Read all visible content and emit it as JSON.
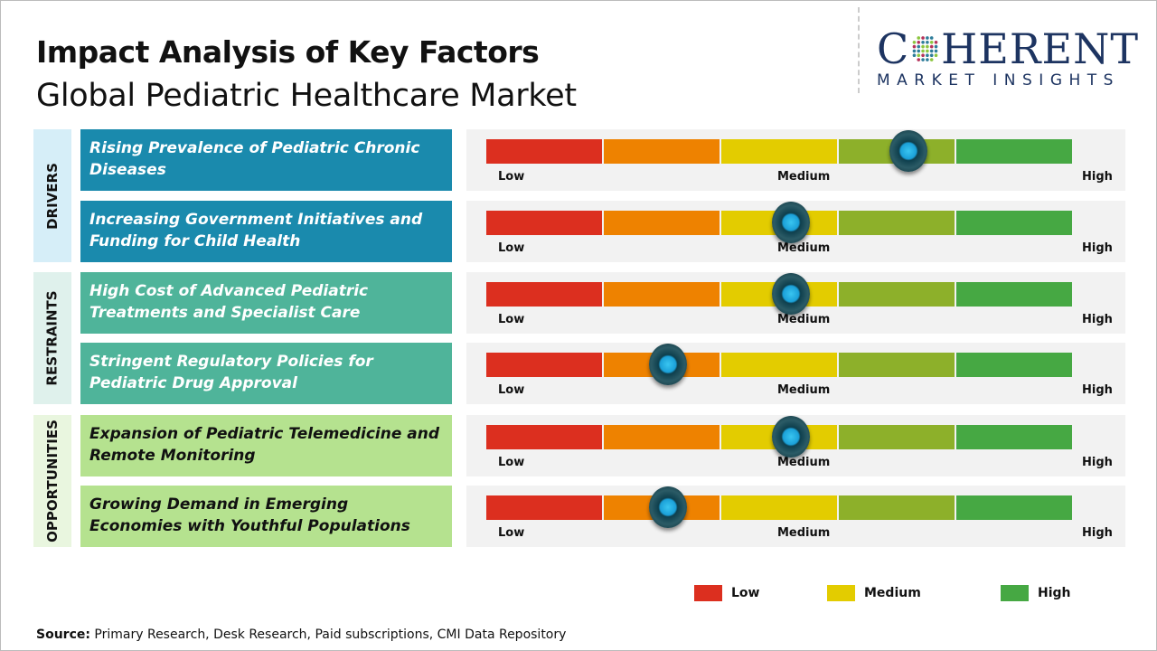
{
  "header": {
    "title": "Impact Analysis of Key Factors",
    "subtitle": "Global Pediatric Healthcare Market"
  },
  "logo": {
    "main_left": "C",
    "main_right": "HERENT",
    "sub": "MARKET INSIGHTS"
  },
  "colors": {
    "drivers": "#1a8aad",
    "restraints": "#4fb49a",
    "opportunities": "#b5e28f",
    "low": "#dc2f1f",
    "low_mid": "#ee8200",
    "medium": "#e3cc00",
    "mid_high": "#8db02a",
    "high": "#46a843"
  },
  "chart_data": {
    "type": "gauge",
    "scale_labels": [
      "Low",
      "Medium",
      "High"
    ],
    "value_unit": "percent of scale from Low to High",
    "groups": [
      {
        "name": "DRIVERS",
        "factors": [
          {
            "label": "Rising Prevalence of Pediatric Chronic Diseases",
            "impact": 72
          },
          {
            "label": "Increasing Government Initiatives and Funding for Child Health",
            "impact": 52
          }
        ]
      },
      {
        "name": "RESTRAINTS",
        "factors": [
          {
            "label": "High Cost of Advanced Pediatric Treatments and Specialist Care",
            "impact": 52
          },
          {
            "label": "Stringent Regulatory Policies for Pediatric Drug Approval",
            "impact": 31
          }
        ]
      },
      {
        "name": "OPPORTUNITIES",
        "factors": [
          {
            "label": "Expansion of Pediatric Telemedicine and Remote Monitoring",
            "impact": 52
          },
          {
            "label": "Growing Demand in Emerging Economies with Youthful Populations",
            "impact": 31
          }
        ]
      }
    ],
    "legend": [
      {
        "label": "Low",
        "color": "#dc2f1f"
      },
      {
        "label": "Medium",
        "color": "#e3cc00"
      },
      {
        "label": "High",
        "color": "#46a843"
      }
    ],
    "legend_placement": "bottom-right"
  },
  "footer": {
    "source_label": "Source:",
    "source_text": " Primary Research, Desk Research, Paid subscriptions, CMI Data Repository"
  }
}
